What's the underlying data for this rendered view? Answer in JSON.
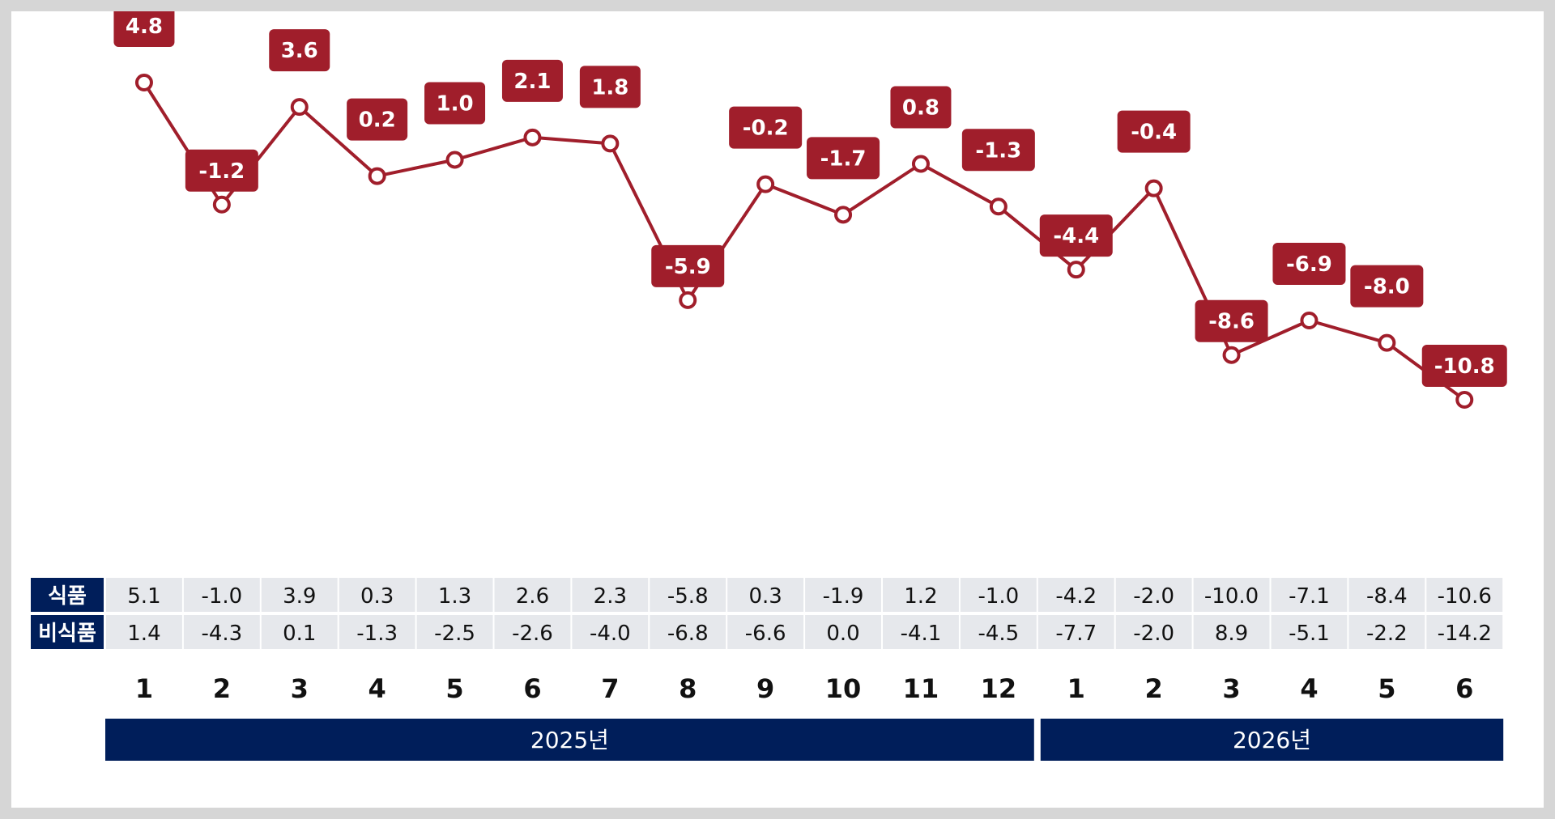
{
  "chart_data": {
    "type": "line",
    "categories": [
      "1",
      "2",
      "3",
      "4",
      "5",
      "6",
      "7",
      "8",
      "9",
      "10",
      "11",
      "12",
      "1",
      "2",
      "3",
      "4",
      "5",
      "6"
    ],
    "series": [
      {
        "values": [
          4.8,
          -1.2,
          3.6,
          0.2,
          1.0,
          2.1,
          1.8,
          -5.9,
          -0.2,
          -1.7,
          0.8,
          -1.3,
          -4.4,
          -0.4,
          -8.6,
          -6.9,
          -8.0,
          -10.8
        ],
        "labels": [
          "4.8",
          "-1.2",
          "3.6",
          "0.2",
          "1.0",
          "2.1",
          "1.8",
          "-5.9",
          "-0.2",
          "-1.7",
          "0.8",
          "-1.3",
          "-4.4",
          "-0.4",
          "-8.6",
          "-6.9",
          "-8.0",
          "-10.8"
        ]
      }
    ],
    "label_placement": [
      "above",
      "below",
      "above",
      "above",
      "above",
      "above",
      "above",
      "below",
      "above",
      "above",
      "above",
      "above",
      "below",
      "above",
      "below",
      "above",
      "above",
      "below"
    ],
    "table": {
      "rows": [
        {
          "header": "식품",
          "values": [
            "5.1",
            "-1.0",
            "3.9",
            "0.3",
            "1.3",
            "2.6",
            "2.3",
            "-5.8",
            "0.3",
            "-1.9",
            "1.2",
            "-1.0",
            "-4.2",
            "-2.0",
            "-10.0",
            "-7.1",
            "-8.4",
            "-10.6"
          ]
        },
        {
          "header": "비식품",
          "values": [
            "1.4",
            "-4.3",
            "0.1",
            "-1.3",
            "-2.5",
            "-2.6",
            "-4.0",
            "-6.8",
            "-6.6",
            "0.0",
            "-4.1",
            "-4.5",
            "-7.7",
            "-2.0",
            "8.9",
            "-5.1",
            "-2.2",
            "-14.2"
          ]
        }
      ]
    },
    "year_groups": [
      {
        "label": "2025년",
        "count": 12
      },
      {
        "label": "2026년",
        "count": 6
      }
    ],
    "title": "",
    "xlabel": "",
    "ylabel": "",
    "grid": false,
    "legend": "none"
  },
  "colors": {
    "line": "#A01E2B",
    "label_bg": "#A01E2B",
    "marker_fill": "#ffffff",
    "table_cell_bg": "#E6E8EC",
    "table_header_bg": "#001E5A",
    "year_bar_bg": "#001E5A"
  }
}
